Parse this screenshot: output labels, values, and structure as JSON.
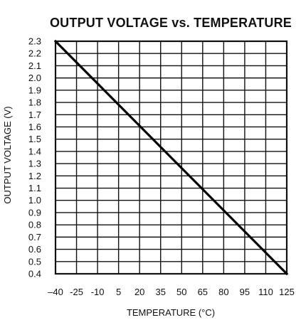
{
  "chart_data": {
    "type": "line",
    "title": "OUTPUT VOLTAGE vs. TEMPERATURE",
    "xlabel": "TEMPERATURE (°C)",
    "ylabel": "OUTPUT VOLTAGE (V)",
    "xlim": [
      -40,
      125
    ],
    "ylim": [
      0.4,
      2.3
    ],
    "x_ticks": [
      "–40",
      "-25",
      "-10",
      "5",
      "20",
      "35",
      "50",
      "65",
      "80",
      "95",
      "110",
      "125"
    ],
    "y_ticks": [
      "2.3",
      "2.2",
      "2.1",
      "2.0",
      "1.9",
      "1.8",
      "1.7",
      "1.6",
      "1.5",
      "1.4",
      "1.3",
      "1.2",
      "1.1",
      "1.0",
      "0.9",
      "0.8",
      "0.7",
      "0.6",
      "0.5",
      "0.4"
    ],
    "grid": true,
    "series": [
      {
        "x": [
          -40,
          125
        ],
        "y": [
          2.3,
          0.4
        ]
      }
    ]
  }
}
